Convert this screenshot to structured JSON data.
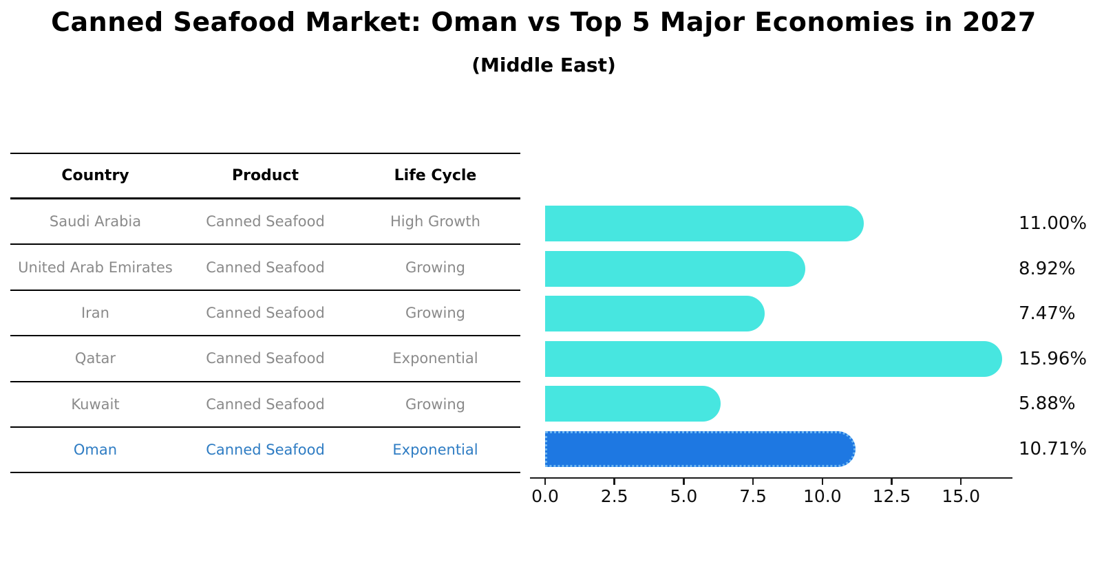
{
  "title": "Canned Seafood Market: Oman vs Top 5 Major Economies in 2027",
  "subtitle": "(Middle East)",
  "table": {
    "headers": [
      "Country",
      "Product",
      "Life Cycle"
    ],
    "rows": [
      {
        "country": "Saudi Arabia",
        "product": "Canned Seafood",
        "life_cycle": "High Growth",
        "highlight": false
      },
      {
        "country": "United Arab Emirates",
        "product": "Canned Seafood",
        "life_cycle": "Growing",
        "highlight": false
      },
      {
        "country": "Iran",
        "product": "Canned Seafood",
        "life_cycle": "Growing",
        "highlight": false
      },
      {
        "country": "Qatar",
        "product": "Canned Seafood",
        "life_cycle": "Exponential",
        "highlight": false
      },
      {
        "country": "Kuwait",
        "product": "Canned Seafood",
        "life_cycle": "Growing",
        "highlight": false
      },
      {
        "country": "Oman",
        "product": "Canned Seafood",
        "life_cycle": "Exponential",
        "highlight": true
      }
    ]
  },
  "chart_data": {
    "type": "bar",
    "orientation": "horizontal",
    "title": "Canned Seafood Market: Oman vs Top 5 Major Economies in 2027",
    "subtitle": "(Middle East)",
    "categories": [
      "Saudi Arabia",
      "United Arab Emirates",
      "Iran",
      "Qatar",
      "Kuwait",
      "Oman"
    ],
    "values": [
      11.0,
      8.92,
      7.47,
      15.96,
      5.88,
      10.71
    ],
    "value_labels": [
      "11.00%",
      "8.92%",
      "7.47%",
      "15.96%",
      "5.88%",
      "10.71%"
    ],
    "x_ticks": [
      0.0,
      2.5,
      5.0,
      7.5,
      10.0,
      12.5,
      15.0
    ],
    "x_tick_labels": [
      "0.0",
      "2.5",
      "5.0",
      "7.5",
      "10.0",
      "12.5",
      "15.0"
    ],
    "xlim": [
      0,
      16.8
    ],
    "grid": false,
    "legend": false,
    "highlight_index": 5
  },
  "colors": {
    "bar_turquoise": "#47e6e0",
    "bar_blue": "#1e78e2",
    "bar_blue_dotted_edge": "#6fb7f2",
    "table_text_gray": "#8a8a8a",
    "highlight_text_blue": "#2e7cc3",
    "axis_black": "#1a1a1a"
  }
}
